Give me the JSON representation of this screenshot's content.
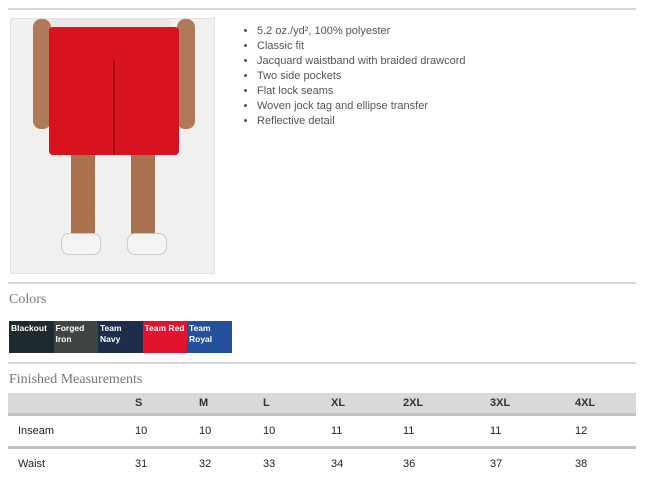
{
  "features": [
    "5.2 oz./yd², 100% polyester",
    "Classic fit",
    "Jacquard waistband with braided drawcord",
    "Two side pockets",
    "Flat lock seams",
    "Woven jock tag and ellipse transfer",
    "Reflective detail"
  ],
  "colors_title": "Colors",
  "swatches": [
    {
      "name": "Blackout",
      "color": "#1e2a2e"
    },
    {
      "name": "Forged Iron",
      "color": "#3f4544"
    },
    {
      "name": "Team Navy",
      "color": "#1f2d4d"
    },
    {
      "name": "Team Red",
      "color": "#e0122c"
    },
    {
      "name": "Team Royal",
      "color": "#244f9a"
    }
  ],
  "measurements": {
    "title": "Finished Measurements",
    "headers": [
      "",
      "S",
      "M",
      "L",
      "XL",
      "2XL",
      "3XL",
      "4XL"
    ],
    "rows": [
      [
        "Inseam",
        "10",
        "10",
        "10",
        "11",
        "11",
        "11",
        "12"
      ],
      [
        "Waist",
        "31",
        "32",
        "33",
        "34",
        "36",
        "37",
        "38"
      ]
    ]
  }
}
